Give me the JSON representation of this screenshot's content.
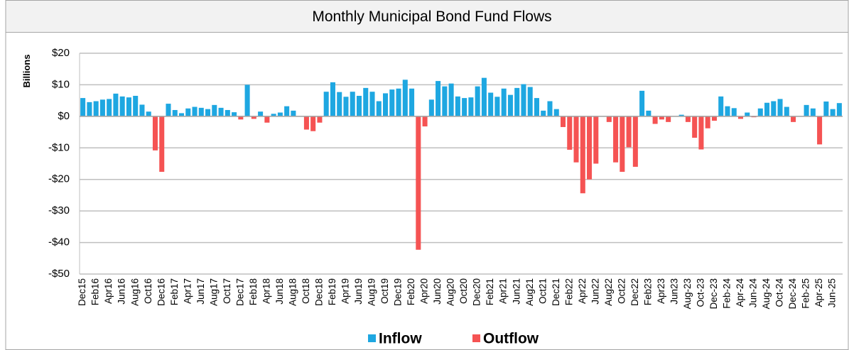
{
  "chart_data": {
    "type": "bar",
    "title": "Monthly Municipal Bond Fund Flows",
    "y_label": "Billions",
    "categories": [
      "Dec15",
      null,
      "Feb16",
      null,
      "Apr16",
      null,
      "Jun16",
      null,
      "Aug16",
      null,
      "Oct16",
      null,
      "Dec16",
      null,
      "Feb17",
      null,
      "Apr17",
      null,
      "Jun17",
      null,
      "Aug17",
      null,
      "Oct17",
      null,
      "Dec17",
      null,
      "Feb18",
      null,
      "Apr18",
      null,
      "Jun18",
      null,
      "Aug18",
      null,
      "Oct18",
      null,
      "Dec18",
      null,
      "Feb19",
      null,
      "Apr19",
      null,
      "Jun19",
      null,
      "Aug19",
      null,
      "Oct19",
      null,
      "Dec19",
      null,
      "Feb20",
      null,
      "Apr20",
      null,
      "Jun20",
      null,
      "Aug20",
      null,
      "Oct20",
      null,
      "Dec20",
      null,
      "Feb21",
      null,
      "Apr21",
      null,
      "Jun21",
      null,
      "Aug21",
      null,
      "Oct21",
      null,
      "Dec21",
      null,
      "Feb22",
      null,
      "Apr22",
      null,
      "Jun22",
      null,
      "Aug22",
      null,
      "Oct22",
      null,
      "Dec22",
      null,
      "Feb23",
      null,
      "Apr23",
      null,
      "Jun23",
      null,
      "Aug-23",
      null,
      "Oct-23",
      null,
      "Dec-23",
      null,
      "Feb-24",
      null,
      "Apr-24",
      null,
      "Jun-24",
      null,
      "Aug-24",
      null,
      "Oct-24",
      null,
      "Dec-24",
      null,
      "Feb-25",
      null,
      "Apr-25",
      null,
      "Jun-25",
      null
    ],
    "series": [
      {
        "name": "Inflow",
        "color": "#1ea7e1",
        "values": [
          5.8,
          4.5,
          4.8,
          5.3,
          5.5,
          7.2,
          6.3,
          6.0,
          6.5,
          3.7,
          1.5,
          null,
          null,
          4.0,
          2.0,
          1.0,
          2.5,
          3.0,
          2.7,
          2.3,
          3.6,
          2.7,
          2.0,
          1.3,
          null,
          10.0,
          null,
          1.5,
          null,
          0.8,
          1.2,
          3.2,
          1.8,
          0,
          null,
          null,
          null,
          7.8,
          10.8,
          7.7,
          6.2,
          7.8,
          6.5,
          9.0,
          7.8,
          4.8,
          7.3,
          8.5,
          8.8,
          11.6,
          8.8,
          null,
          null,
          5.3,
          11.2,
          9.5,
          10.4,
          6.3,
          5.8,
          6.0,
          9.5,
          12.2,
          7.5,
          6.2,
          8.8,
          6.8,
          9.0,
          10.2,
          9.3,
          5.8,
          1.8,
          4.8,
          2.3,
          null,
          null,
          null,
          null,
          null,
          null,
          0,
          null,
          null,
          null,
          null,
          null,
          8.1,
          1.8,
          null,
          null,
          null,
          0,
          0.5,
          null,
          null,
          null,
          null,
          null,
          6.3,
          3.2,
          2.6,
          null,
          1.2,
          null,
          2.5,
          4.3,
          4.8,
          5.5,
          3.0,
          null,
          0,
          3.6,
          2.5,
          null,
          4.7,
          2.3,
          4.2
        ]
      },
      {
        "name": "Outflow",
        "color": "#f55353",
        "values": [
          null,
          null,
          null,
          null,
          null,
          null,
          null,
          null,
          null,
          null,
          null,
          -10.8,
          -17.6,
          null,
          null,
          null,
          null,
          null,
          null,
          null,
          null,
          null,
          null,
          null,
          -1.0,
          null,
          -0.8,
          null,
          -2.0,
          null,
          null,
          null,
          null,
          null,
          -4.2,
          -4.7,
          -2.0,
          null,
          null,
          null,
          null,
          null,
          null,
          null,
          null,
          null,
          null,
          null,
          null,
          null,
          null,
          -42.3,
          -3.2,
          null,
          null,
          null,
          null,
          null,
          null,
          null,
          null,
          null,
          null,
          null,
          null,
          null,
          null,
          null,
          null,
          null,
          null,
          null,
          null,
          -3.4,
          -10.6,
          -14.6,
          -24.4,
          -20.0,
          -15.0,
          null,
          -1.8,
          -14.6,
          -17.6,
          -9.8,
          -16.0,
          null,
          null,
          -2.4,
          -1.0,
          -1.8,
          null,
          null,
          -1.8,
          -6.8,
          -10.5,
          -3.8,
          -1.4,
          null,
          null,
          null,
          -0.8,
          null,
          -0.3,
          null,
          null,
          null,
          null,
          null,
          -1.8,
          null,
          null,
          null,
          -8.9,
          null,
          null,
          null
        ]
      }
    ],
    "ylim": [
      -50,
      20
    ],
    "yticks": [
      {
        "value": -50,
        "label": "-$50"
      },
      {
        "value": -40,
        "label": "-$40"
      },
      {
        "value": -30,
        "label": "-$30"
      },
      {
        "value": -20,
        "label": "-$20"
      },
      {
        "value": -10,
        "label": "-$10"
      },
      {
        "value": 0,
        "label": "$0"
      },
      {
        "value": 10,
        "label": "$10"
      },
      {
        "value": 20,
        "label": "$20"
      }
    ],
    "grid": true,
    "legend": "bottom"
  }
}
